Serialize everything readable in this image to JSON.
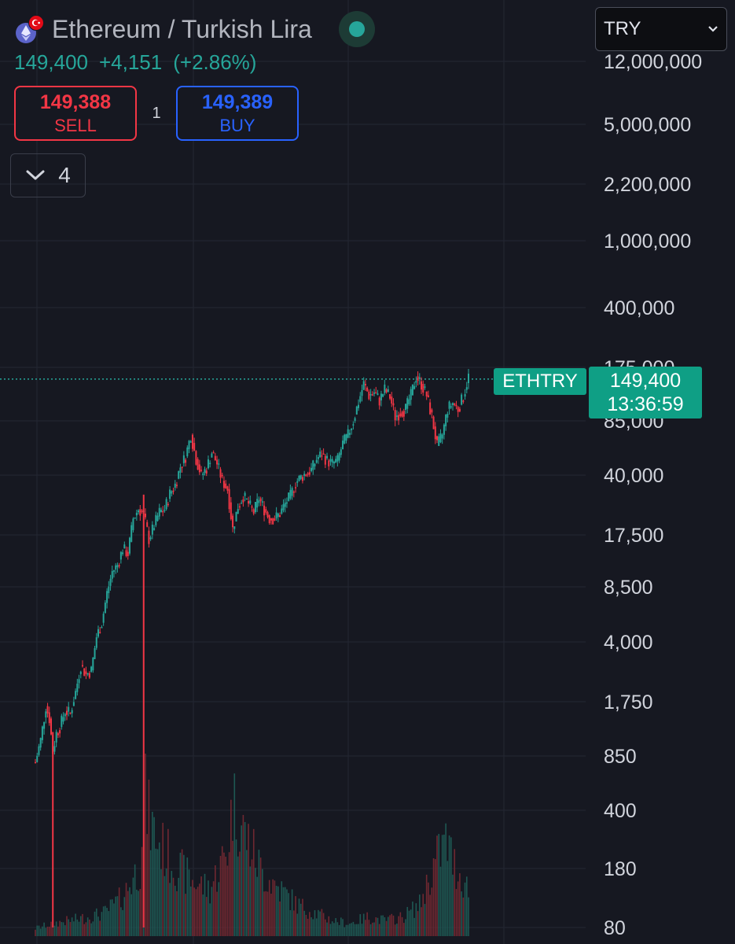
{
  "header": {
    "title": "Ethereum / Turkish Lira",
    "last_price": "149,400",
    "change": "+4,151",
    "change_pct": "(+2.86%)"
  },
  "trade": {
    "sell_price": "149,388",
    "sell_label": "SELL",
    "spread": "1",
    "buy_price": "149,389",
    "buy_label": "BUY"
  },
  "indicators": {
    "count": "4"
  },
  "currency": {
    "selected": "TRY"
  },
  "price_tag": {
    "symbol": "ETHTRY",
    "price": "149,400",
    "countdown": "13:36:59"
  },
  "colors": {
    "up": "#26a69a",
    "down": "#f23645",
    "buy": "#2962ff",
    "background": "#161821",
    "grid": "#242733"
  },
  "icons": {
    "eth": "ethereum-icon",
    "flag": "turkish-flag-icon",
    "live": "live-dot-icon",
    "chevron": "chevron-down-icon"
  },
  "chart_data": {
    "type": "candlestick",
    "symbol": "ETHTRY",
    "y_scale": "log",
    "grid": true,
    "y_ticks": [
      {
        "label": "12,000,000",
        "value": 12000000
      },
      {
        "label": "5,000,000",
        "value": 5000000
      },
      {
        "label": "2,200,000",
        "value": 2200000
      },
      {
        "label": "1,000,000",
        "value": 1000000
      },
      {
        "label": "400,000",
        "value": 400000
      },
      {
        "label": "175,000",
        "value": 175000
      },
      {
        "label": "85,000",
        "value": 85000
      },
      {
        "label": "40,000",
        "value": 40000
      },
      {
        "label": "17,500",
        "value": 17500
      },
      {
        "label": "8,500",
        "value": 8500
      },
      {
        "label": "4,000",
        "value": 4000
      },
      {
        "label": "1,750",
        "value": 1750
      },
      {
        "label": "850",
        "value": 850
      },
      {
        "label": "400",
        "value": 400
      },
      {
        "label": "180",
        "value": 180
      },
      {
        "label": "80",
        "value": 80
      }
    ],
    "last_price": 149400,
    "price_path": [
      [
        0,
        780
      ],
      [
        3,
        1050
      ],
      [
        6,
        1650
      ],
      [
        8,
        1400
      ],
      [
        10,
        900
      ],
      [
        12,
        1150
      ],
      [
        14,
        1250
      ],
      [
        17,
        1550
      ],
      [
        20,
        1500
      ],
      [
        23,
        2000
      ],
      [
        26,
        2900
      ],
      [
        29,
        2550
      ],
      [
        32,
        2700
      ],
      [
        35,
        4300
      ],
      [
        38,
        5200
      ],
      [
        41,
        7800
      ],
      [
        44,
        10500
      ],
      [
        47,
        11500
      ],
      [
        50,
        14500
      ],
      [
        53,
        13500
      ],
      [
        56,
        22000
      ],
      [
        59,
        25000
      ],
      [
        62,
        23500
      ],
      [
        65,
        16500
      ],
      [
        68,
        20000
      ],
      [
        71,
        24000
      ],
      [
        74,
        25000
      ],
      [
        77,
        31000
      ],
      [
        80,
        35000
      ],
      [
        83,
        45000
      ],
      [
        86,
        52000
      ],
      [
        89,
        70000
      ],
      [
        92,
        50000
      ],
      [
        95,
        40000
      ],
      [
        98,
        44000
      ],
      [
        101,
        55000
      ],
      [
        104,
        47000
      ],
      [
        107,
        37000
      ],
      [
        110,
        33000
      ],
      [
        113,
        19000
      ],
      [
        116,
        26000
      ],
      [
        119,
        30000
      ],
      [
        122,
        27000
      ],
      [
        125,
        24000
      ],
      [
        128,
        29000
      ],
      [
        131,
        25000
      ],
      [
        134,
        22000
      ],
      [
        137,
        22000
      ],
      [
        140,
        23500
      ],
      [
        143,
        27000
      ],
      [
        146,
        30000
      ],
      [
        149,
        36000
      ],
      [
        152,
        39000
      ],
      [
        155,
        41000
      ],
      [
        158,
        43000
      ],
      [
        161,
        50000
      ],
      [
        164,
        54000
      ],
      [
        167,
        49000
      ],
      [
        170,
        47000
      ],
      [
        173,
        49000
      ],
      [
        176,
        62000
      ],
      [
        179,
        70000
      ],
      [
        182,
        85000
      ],
      [
        185,
        110000
      ],
      [
        188,
        140000
      ],
      [
        191,
        120000
      ],
      [
        194,
        125000
      ],
      [
        197,
        112000
      ],
      [
        200,
        130000
      ],
      [
        203,
        118000
      ],
      [
        206,
        90000
      ],
      [
        209,
        96000
      ],
      [
        212,
        100000
      ],
      [
        215,
        120000
      ],
      [
        218,
        155000
      ],
      [
        221,
        140000
      ],
      [
        224,
        120000
      ],
      [
        227,
        90000
      ],
      [
        230,
        60000
      ],
      [
        233,
        70000
      ],
      [
        236,
        100000
      ],
      [
        239,
        108000
      ],
      [
        242,
        100000
      ],
      [
        245,
        118000
      ],
      [
        248,
        155000
      ]
    ],
    "volume_path": [
      [
        0,
        0.05
      ],
      [
        10,
        0.08
      ],
      [
        20,
        0.1
      ],
      [
        30,
        0.12
      ],
      [
        40,
        0.15
      ],
      [
        50,
        0.25
      ],
      [
        60,
        0.45
      ],
      [
        62,
        0.95
      ],
      [
        65,
        0.75
      ],
      [
        70,
        0.6
      ],
      [
        80,
        0.45
      ],
      [
        90,
        0.35
      ],
      [
        100,
        0.3
      ],
      [
        110,
        0.55
      ],
      [
        113,
        0.85
      ],
      [
        120,
        0.65
      ],
      [
        130,
        0.4
      ],
      [
        140,
        0.3
      ],
      [
        150,
        0.2
      ],
      [
        160,
        0.15
      ],
      [
        170,
        0.1
      ],
      [
        180,
        0.08
      ],
      [
        190,
        0.12
      ],
      [
        200,
        0.1
      ],
      [
        210,
        0.12
      ],
      [
        220,
        0.2
      ],
      [
        225,
        0.35
      ],
      [
        230,
        0.5
      ],
      [
        235,
        0.6
      ],
      [
        240,
        0.45
      ],
      [
        248,
        0.3
      ]
    ],
    "spikes": [
      {
        "index": 10,
        "low": 80
      },
      {
        "index": 62,
        "low": 80
      }
    ]
  }
}
